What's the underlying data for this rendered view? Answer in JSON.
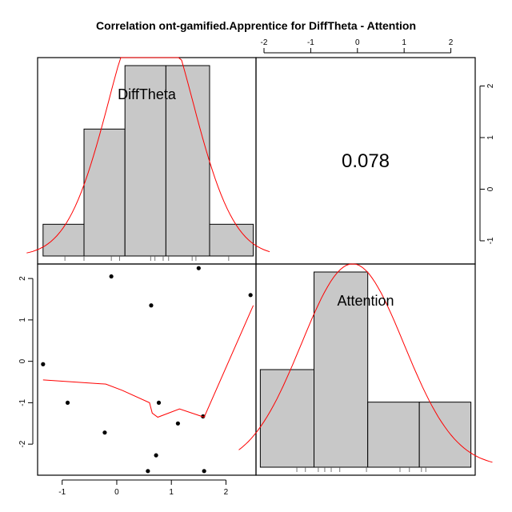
{
  "chart_data": {
    "type": "scatter",
    "title": "Correlation ont-gamified.Apprentice for DiffTheta - Attention",
    "correlation_label": "0.078",
    "variables": [
      {
        "name": "DiffTheta",
        "histogram": {
          "bin_edges": [
            -1.35,
            -0.6,
            0.15,
            0.9,
            1.7,
            2.5
          ],
          "counts": [
            1,
            4,
            6,
            6,
            1
          ]
        },
        "rug": [
          -0.95,
          -0.6,
          -0.1,
          0.05,
          0.62,
          0.7,
          0.85,
          0.95,
          1.38,
          1.45,
          2.05
        ]
      },
      {
        "name": "Attention",
        "histogram": {
          "bin_edges": [
            -2.65,
            -1.4,
            -0.15,
            1.05,
            2.25
          ],
          "counts": [
            3,
            6,
            2,
            2
          ]
        },
        "rug": [
          -1.8,
          -1.6,
          -1.3,
          -1.15,
          -1.0,
          -0.8,
          -0.18,
          0.6,
          0.82,
          1.1,
          1.2
        ]
      }
    ],
    "scatter": {
      "x_var": "DiffTheta",
      "y_var": "Attention",
      "x": [
        -1.35,
        -0.9,
        -0.22,
        -0.1,
        0.57,
        0.63,
        0.72,
        0.77,
        1.12,
        1.5,
        1.58,
        1.6,
        2.45
      ],
      "y": [
        -0.07,
        -1.0,
        -1.72,
        2.05,
        -2.65,
        1.35,
        -2.27,
        -1.0,
        -1.5,
        2.25,
        -1.33,
        -2.65,
        1.6
      ],
      "smooth_line": {
        "x": [
          -1.35,
          -0.2,
          0.1,
          0.6,
          0.65,
          0.75,
          1.15,
          1.6,
          2.5
        ],
        "y": [
          -0.45,
          -0.55,
          -0.7,
          -1.0,
          -1.25,
          -1.35,
          -1.15,
          -1.35,
          1.35
        ]
      }
    },
    "axes": {
      "bottom_ticks": [
        -1,
        0,
        1,
        2
      ],
      "left_ticks": [
        -2,
        -1,
        0,
        1,
        2
      ],
      "top_ticks": [
        -2,
        -1,
        0,
        1,
        2
      ],
      "right_ticks": [
        -1,
        0,
        1,
        2
      ],
      "difftheta_range": [
        -1.45,
        2.55
      ],
      "attention_range": [
        -2.75,
        2.35
      ],
      "attention_top_range": [
        -2.0,
        2.35
      ],
      "difftheta_right_range": [
        -1.45,
        2.55
      ]
    }
  }
}
